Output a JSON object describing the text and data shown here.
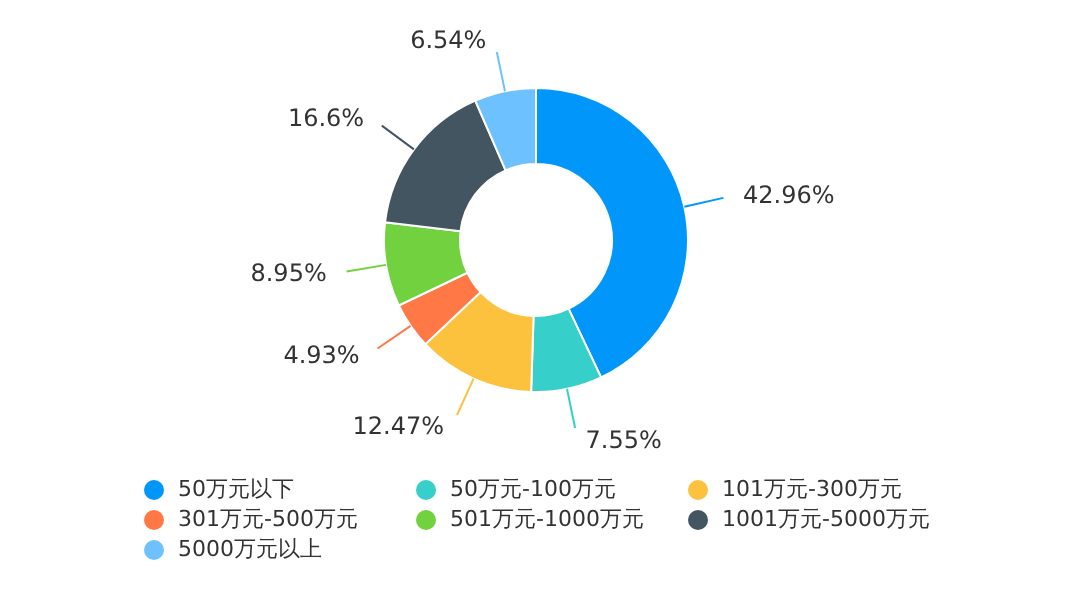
{
  "chart_data": {
    "type": "donut",
    "categories": [
      "50万元以下",
      "50万元-100万元",
      "101万元-300万元",
      "301万元-500万元",
      "501万元-1000万元",
      "1001万元-5000万元",
      "5000万元以上"
    ],
    "values": [
      42.96,
      7.55,
      12.47,
      4.93,
      8.95,
      16.6,
      6.54
    ],
    "value_labels": [
      "42.96%",
      "7.55%",
      "12.47%",
      "4.93%",
      "8.95%",
      "16.6%",
      "6.54%"
    ],
    "colors": [
      "#0096fa",
      "#36cfc9",
      "#fcc23d",
      "#ff7846",
      "#72d13f",
      "#435561",
      "#6ec1ff"
    ],
    "legend": "bottom"
  }
}
